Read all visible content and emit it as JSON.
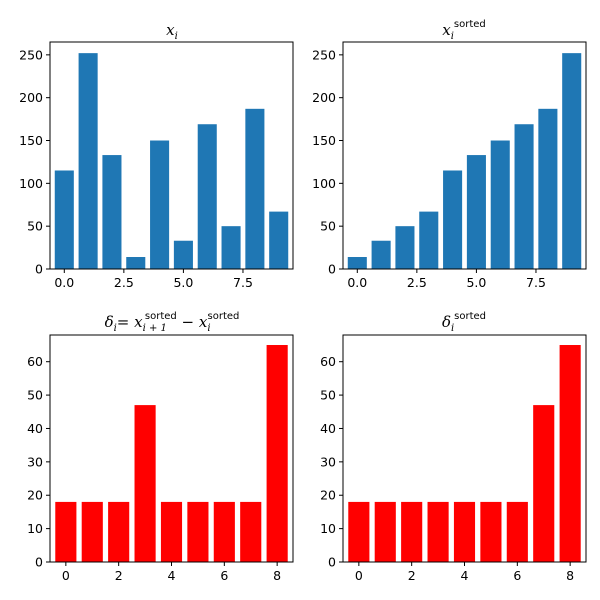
{
  "chart_data": [
    {
      "type": "bar",
      "title_main": "x",
      "title_sub": "i",
      "title_sup": "",
      "x": [
        0,
        1,
        2,
        3,
        4,
        5,
        6,
        7,
        8,
        9
      ],
      "values": [
        115,
        252,
        133,
        14,
        150,
        33,
        169,
        50,
        187,
        67
      ],
      "xlim": [
        -0.6,
        9.6
      ],
      "ylim": [
        0,
        265
      ],
      "xticks": [
        0.0,
        2.5,
        5.0,
        7.5
      ],
      "xtick_labels": [
        "0.0",
        "2.5",
        "5.0",
        "7.5"
      ],
      "yticks": [
        0,
        50,
        100,
        150,
        200,
        250
      ],
      "ytick_labels": [
        "0",
        "50",
        "100",
        "150",
        "200",
        "250"
      ],
      "color": "#1f77b4"
    },
    {
      "type": "bar",
      "title_main": "x",
      "title_sub": "i",
      "title_sup": "sorted",
      "x": [
        0,
        1,
        2,
        3,
        4,
        5,
        6,
        7,
        8,
        9
      ],
      "values": [
        14,
        33,
        50,
        67,
        115,
        133,
        150,
        169,
        187,
        252
      ],
      "xlim": [
        -0.6,
        9.6
      ],
      "ylim": [
        0,
        265
      ],
      "xticks": [
        0.0,
        2.5,
        5.0,
        7.5
      ],
      "xtick_labels": [
        "0.0",
        "2.5",
        "5.0",
        "7.5"
      ],
      "yticks": [
        0,
        50,
        100,
        150,
        200,
        250
      ],
      "ytick_labels": [
        "0",
        "50",
        "100",
        "150",
        "200",
        "250"
      ],
      "color": "#1f77b4"
    },
    {
      "type": "bar",
      "title_main": "δ",
      "title_sub": "i",
      "title_sup": "",
      "title_rhs_1": "= x",
      "title_rhs_1_sub": "i + 1",
      "title_rhs_1_sup": "sorted",
      "title_rhs_2": " − x",
      "title_rhs_2_sub": "i",
      "title_rhs_2_sup": "sorted",
      "x": [
        0,
        1,
        2,
        3,
        4,
        5,
        6,
        7,
        8
      ],
      "values": [
        18,
        18,
        18,
        47,
        18,
        18,
        18,
        18,
        65
      ],
      "xlim": [
        -0.6,
        8.6
      ],
      "ylim": [
        0,
        68
      ],
      "xticks": [
        0,
        2,
        4,
        6,
        8
      ],
      "xtick_labels": [
        "0",
        "2",
        "4",
        "6",
        "8"
      ],
      "yticks": [
        0,
        10,
        20,
        30,
        40,
        50,
        60
      ],
      "ytick_labels": [
        "0",
        "10",
        "20",
        "30",
        "40",
        "50",
        "60"
      ],
      "color": "#ff0000"
    },
    {
      "type": "bar",
      "title_main": "δ",
      "title_sub": "i",
      "title_sup": "sorted",
      "x": [
        0,
        1,
        2,
        3,
        4,
        5,
        6,
        7,
        8
      ],
      "values": [
        18,
        18,
        18,
        18,
        18,
        18,
        18,
        47,
        65
      ],
      "xlim": [
        -0.6,
        8.6
      ],
      "ylim": [
        0,
        68
      ],
      "xticks": [
        0,
        2,
        4,
        6,
        8
      ],
      "xtick_labels": [
        "0",
        "2",
        "4",
        "6",
        "8"
      ],
      "yticks": [
        0,
        10,
        20,
        30,
        40,
        50,
        60
      ],
      "ytick_labels": [
        "0",
        "10",
        "20",
        "30",
        "40",
        "50",
        "60"
      ],
      "color": "#ff0000"
    }
  ]
}
